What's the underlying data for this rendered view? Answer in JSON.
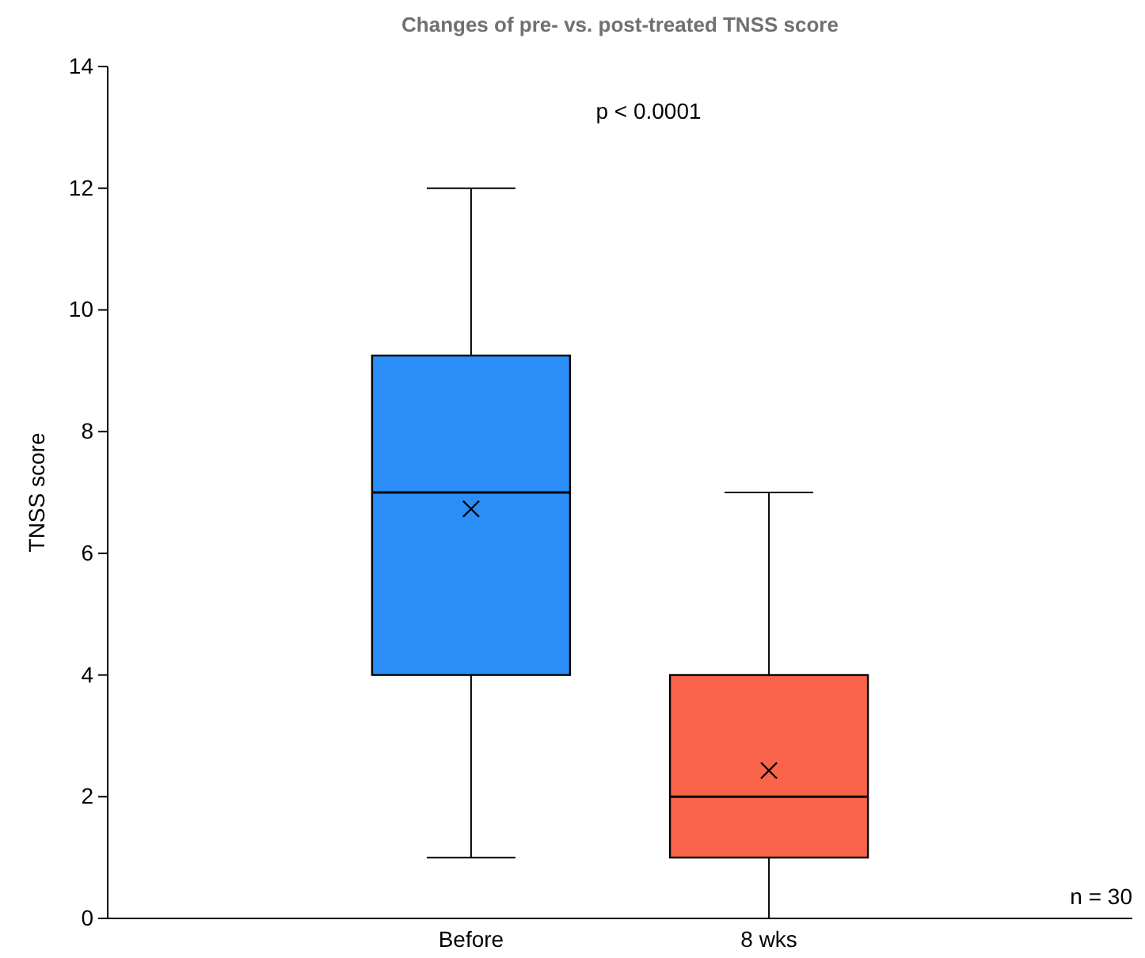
{
  "chart_data": {
    "type": "box",
    "title": "Changes of pre- vs. post-treated TNSS score",
    "ylabel": "TNSS score",
    "categories": [
      "Before",
      "8 wks"
    ],
    "boxes": [
      {
        "low": 1,
        "q1": 4,
        "median": 7,
        "q3": 9.25,
        "high": 12,
        "mean": 6.73
      },
      {
        "low": 0,
        "q1": 1,
        "median": 2,
        "q3": 4,
        "high": 7,
        "mean": 2.43
      }
    ],
    "colors": [
      "#2b8ef8",
      "#f9644b"
    ],
    "ylim": [
      0,
      14
    ],
    "yticks": [
      0,
      2,
      4,
      6,
      8,
      10,
      12,
      14
    ],
    "annotations": [
      "p < 0.0001",
      "n = 30"
    ]
  }
}
